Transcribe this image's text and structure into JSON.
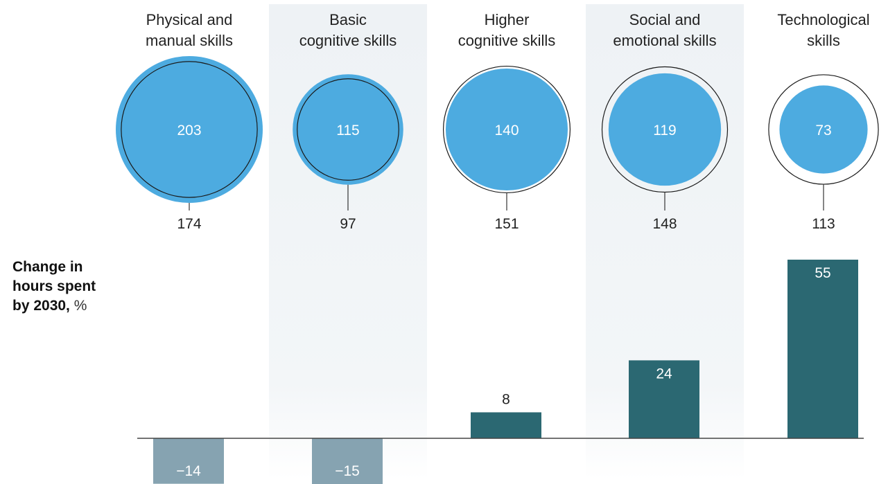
{
  "chart_data": {
    "type": "bar",
    "categories": [
      [
        "Physical and",
        "manual skills"
      ],
      [
        "Basic",
        "cognitive skills"
      ],
      [
        "Higher",
        "cognitive skills"
      ],
      [
        "Social and",
        "emotional skills"
      ],
      [
        "Technological",
        "skills"
      ]
    ],
    "bubbles": {
      "filled_values": [
        203,
        115,
        140,
        119,
        73
      ],
      "outline_values": [
        174,
        97,
        151,
        148,
        113
      ],
      "fill_color": "#4DABE0",
      "outline_color": "#1a1a1a"
    },
    "series": [
      {
        "values": [
          -14,
          -15,
          8,
          24,
          55
        ]
      }
    ],
    "ylabel": {
      "bold": "Change in hours spent by 2030,",
      "unit": "%"
    },
    "ylim": [
      -15,
      55
    ],
    "colors": {
      "positive": "#2B6872",
      "negative": "#86A3B1",
      "band": "#EEF2F5"
    },
    "shaded_columns": [
      1,
      3
    ]
  }
}
